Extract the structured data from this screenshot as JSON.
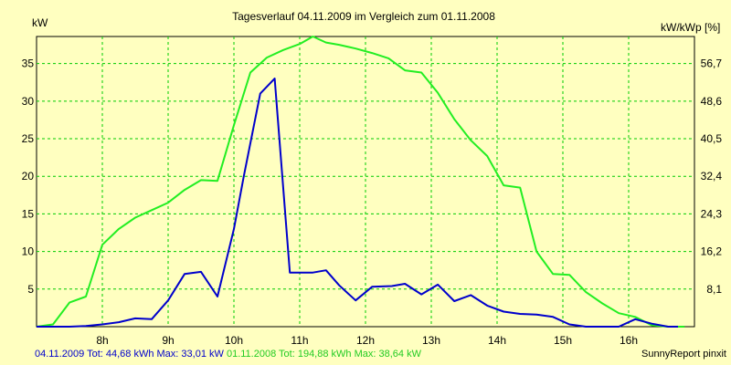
{
  "chart_data": {
    "type": "line",
    "title": "Tagesverlauf 04.11.2009 im Vergleich zum 01.11.2008",
    "ylabel_left": "kW",
    "ylabel_right": "kW/kWp [%]",
    "x_ticks": [
      "8h",
      "9h",
      "10h",
      "11h",
      "12h",
      "13h",
      "14h",
      "15h",
      "16h"
    ],
    "x_tick_values": [
      8,
      9,
      10,
      11,
      12,
      13,
      14,
      15,
      16
    ],
    "xlim": [
      7,
      17
    ],
    "y_ticks_left": [
      "5",
      "10",
      "15",
      "20",
      "25",
      "30",
      "35"
    ],
    "y_tick_values_left": [
      5,
      10,
      15,
      20,
      25,
      30,
      35
    ],
    "ylim": [
      0,
      38.6
    ],
    "y_ticks_right": [
      "8,1",
      "16,2",
      "24,3",
      "32,4",
      "40,5",
      "48,6",
      "56,7"
    ],
    "grid": true,
    "colors": {
      "background": "#ffffc0",
      "plot_border": "#000000",
      "grid": "#00cc00",
      "series_2009": "#0000cc",
      "series_2008": "#22ee22"
    },
    "series": [
      {
        "name": "04.11.2009",
        "color": "#0000cc",
        "x": [
          7.0,
          7.25,
          7.5,
          7.75,
          8.0,
          8.25,
          8.5,
          8.75,
          9.0,
          9.25,
          9.5,
          9.75,
          10.0,
          10.15,
          10.4,
          10.62,
          10.85,
          11.0,
          11.2,
          11.4,
          11.6,
          11.85,
          12.1,
          12.4,
          12.6,
          12.85,
          13.1,
          13.35,
          13.6,
          13.85,
          14.1,
          14.35,
          14.6,
          14.85,
          15.1,
          15.35,
          15.6,
          15.85,
          16.1,
          16.35,
          16.6,
          16.75
        ],
        "y": [
          0.0,
          0.0,
          0.0,
          0.1,
          0.3,
          0.6,
          1.1,
          1.0,
          3.5,
          7.0,
          7.3,
          4.0,
          13.0,
          20.0,
          31.0,
          33.0,
          7.2,
          7.2,
          7.2,
          7.5,
          5.5,
          3.5,
          5.3,
          5.4,
          5.7,
          4.3,
          5.6,
          3.4,
          4.2,
          2.8,
          2.0,
          1.7,
          1.6,
          1.3,
          0.3,
          0.0,
          0.0,
          0.0,
          1.0,
          0.4,
          0.0,
          0.0
        ]
      },
      {
        "name": "01.11.2008",
        "color": "#22ee22",
        "x": [
          7.0,
          7.25,
          7.5,
          7.75,
          8.0,
          8.25,
          8.5,
          8.75,
          9.0,
          9.25,
          9.5,
          9.75,
          10.0,
          10.25,
          10.5,
          10.75,
          11.0,
          11.2,
          11.4,
          11.6,
          11.85,
          12.1,
          12.35,
          12.6,
          12.85,
          13.1,
          13.35,
          13.6,
          13.85,
          14.1,
          14.35,
          14.6,
          14.85,
          15.1,
          15.35,
          15.6,
          15.85,
          16.1,
          16.35,
          16.6,
          16.85
        ],
        "y": [
          0.0,
          0.3,
          3.2,
          4.0,
          10.9,
          13.0,
          14.5,
          15.5,
          16.5,
          18.2,
          19.5,
          19.4,
          26.8,
          33.8,
          35.8,
          36.8,
          37.6,
          38.6,
          37.8,
          37.5,
          37.0,
          36.4,
          35.7,
          34.1,
          33.8,
          31.1,
          27.6,
          24.8,
          22.7,
          18.8,
          18.5,
          10.0,
          7.0,
          6.9,
          4.6,
          3.1,
          1.8,
          1.3,
          0.2,
          0.0,
          0.0
        ]
      }
    ]
  },
  "footer": {
    "series_2009_label": "04.11.2009 Tot: 44,68 kWh Max: 33,01 kW",
    "series_2008_label": "01.11.2008 Tot: 194,88 kWh Max: 38,64 kW",
    "credit": "SunnyReport pinxit"
  }
}
